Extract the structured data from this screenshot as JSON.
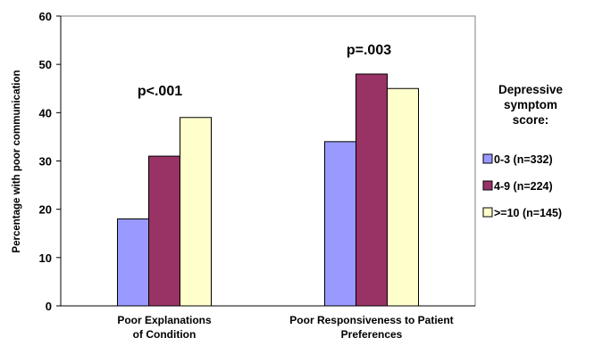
{
  "chart_data": {
    "type": "bar",
    "categories": [
      [
        "Poor Explanations",
        "of Condition"
      ],
      [
        "Poor Responsiveness to Patient",
        "Preferences"
      ]
    ],
    "series": [
      {
        "name": "0-3 (n=332)",
        "values": [
          18,
          34
        ],
        "color": "#9999ff"
      },
      {
        "name": "4-9 (n=224)",
        "values": [
          31,
          48
        ],
        "color": "#993366"
      },
      {
        "name": ">=10 (n=145)",
        "values": [
          39,
          45
        ],
        "color": "#ffffcc"
      }
    ],
    "ylabel": "Percentage with poor communication",
    "xlabel": "",
    "ylim": [
      0,
      60
    ],
    "yticks": [
      0,
      10,
      20,
      30,
      40,
      50,
      60
    ],
    "annotations": [
      "p<.001",
      "p=.003"
    ],
    "legend_title": [
      "Depressive",
      "symptom",
      "score:"
    ],
    "legend_position": "right",
    "grid": false
  }
}
